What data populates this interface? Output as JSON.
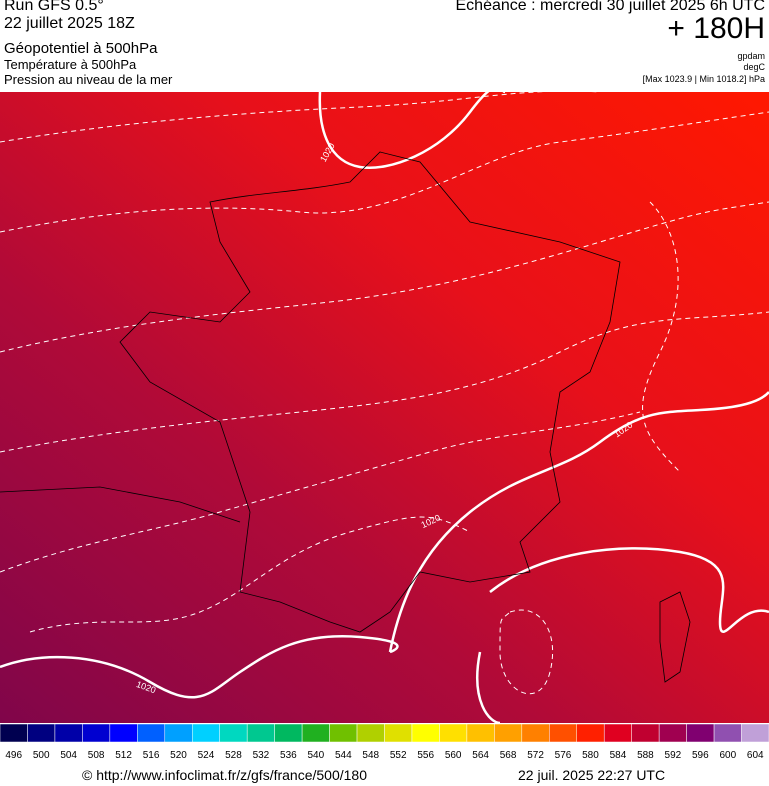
{
  "header": {
    "run": "Run GFS 0.5°",
    "run_date": "22 juillet 2025 18Z",
    "field_1": "Géopotentiel à 500hPa",
    "field_2": "Température à 500hPa",
    "field_3": "Pression au niveau de la mer",
    "valid": "Echéance : mercredi 30 juillet 2025 6h UTC",
    "lead": "+ 180H",
    "unit_1": "gpdam",
    "unit_2": "degC",
    "range": "[Max 1023.9 | Min 1018.2] hPa"
  },
  "map": {
    "isobar_labels": [
      "1020",
      "1020",
      "1020",
      "1020"
    ]
  },
  "colorbar": {
    "labels": [
      496,
      500,
      504,
      508,
      512,
      516,
      520,
      524,
      528,
      532,
      536,
      540,
      544,
      548,
      552,
      556,
      560,
      564,
      568,
      572,
      576,
      580,
      584,
      588,
      592,
      596,
      600,
      604
    ],
    "colors": [
      "#000050",
      "#000080",
      "#0000a8",
      "#0000d0",
      "#0000ff",
      "#0060ff",
      "#00a0ff",
      "#00d0ff",
      "#00d8c0",
      "#00c890",
      "#00b860",
      "#20b020",
      "#70c000",
      "#b0d000",
      "#e0e000",
      "#ffff00",
      "#ffe000",
      "#ffc000",
      "#ffa000",
      "#ff8000",
      "#ff5000",
      "#ff2000",
      "#e00020",
      "#c00030",
      "#a00050",
      "#800070",
      "#9050b0",
      "#c0a0d8"
    ]
  },
  "footer": {
    "url": "© http://www.infoclimat.fr/z/gfs/france/500/180",
    "timestamp": "22 juil. 2025 22:27 UTC"
  }
}
